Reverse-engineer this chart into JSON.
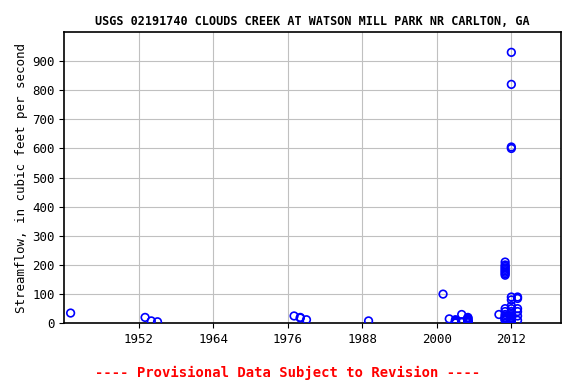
{
  "title": "USGS 02191740 CLOUDS CREEK AT WATSON MILL PARK NR CARLTON, GA",
  "ylabel": "Streamflow, in cubic feet per second",
  "xlabel_note": "---- Provisional Data Subject to Revision ----",
  "xlim": [
    1940,
    2020
  ],
  "ylim": [
    0,
    1000
  ],
  "yticks": [
    0,
    100,
    200,
    300,
    400,
    500,
    600,
    700,
    800,
    900
  ],
  "xticks": [
    1952,
    1964,
    1976,
    1988,
    2000,
    2012
  ],
  "marker_color": "#0000FF",
  "marker_size": 30,
  "background_color": "#ffffff",
  "grid_color": "#c0c0c0",
  "x_data": [
    1941,
    1953,
    1954,
    1955,
    1977,
    1978,
    1978,
    1979,
    1989,
    2001,
    2002,
    2003,
    2003,
    2003,
    2003,
    2003,
    2003,
    2003,
    2003,
    2003,
    2003,
    2004,
    2004,
    2004,
    2005,
    2005,
    2005,
    2005,
    2005,
    2005,
    2005,
    2005,
    2005,
    2005,
    2005,
    2010,
    2011,
    2011,
    2011,
    2011,
    2011,
    2011,
    2011,
    2011,
    2011,
    2011,
    2011,
    2011,
    2011,
    2011,
    2011,
    2011,
    2011,
    2011,
    2012,
    2012,
    2012,
    2012,
    2012,
    2012,
    2012,
    2012,
    2012,
    2012,
    2012,
    2012,
    2012,
    2012,
    2012,
    2012,
    2012,
    2012,
    2012,
    2013,
    2013,
    2013,
    2013,
    2013,
    2013
  ],
  "y_data": [
    35,
    20,
    8,
    5,
    25,
    20,
    18,
    12,
    8,
    100,
    15,
    10,
    12,
    8,
    6,
    5,
    4,
    3,
    2,
    2,
    1,
    5,
    3,
    30,
    20,
    18,
    15,
    12,
    10,
    8,
    6,
    5,
    4,
    3,
    2,
    30,
    210,
    200,
    195,
    190,
    185,
    180,
    175,
    170,
    165,
    50,
    40,
    30,
    25,
    20,
    18,
    15,
    12,
    10,
    930,
    820,
    605,
    600,
    90,
    80,
    60,
    50,
    40,
    30,
    25,
    20,
    18,
    15,
    12,
    10,
    8,
    5,
    3,
    90,
    85,
    50,
    40,
    25,
    10
  ],
  "note_color": "#ff0000",
  "title_fontsize": 8.5,
  "axis_fontsize": 9,
  "note_fontsize": 10
}
